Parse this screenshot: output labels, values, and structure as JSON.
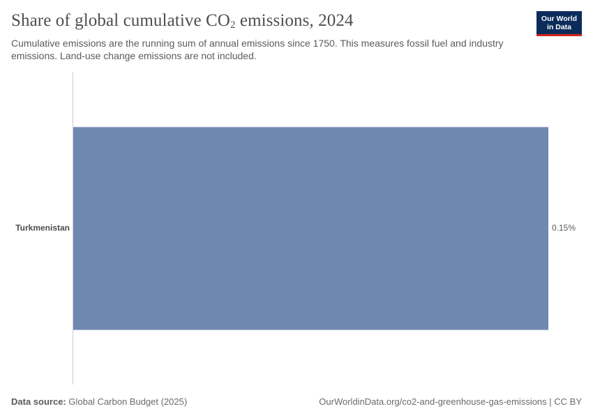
{
  "header": {
    "title_main": "Share of global cumulative CO",
    "title_sub": "2",
    "title_end": " emissions, 2024",
    "subtitle": "Cumulative emissions are the running sum of annual emissions since 1750. This measures fossil fuel and industry emissions. Land-use change emissions are not included.",
    "logo_line1": "Our World",
    "logo_line2": "in Data"
  },
  "colors": {
    "bar": "#6f88b1",
    "logo_bg": "#0b2c5b",
    "logo_accent": "#ce261e"
  },
  "chart_data": {
    "type": "bar",
    "orientation": "horizontal",
    "categories": [
      "Turkmenistan"
    ],
    "values": [
      0.15
    ],
    "value_labels": [
      "0.15%"
    ],
    "unit": "%",
    "xlim": [
      0,
      0.15
    ],
    "grid": false
  },
  "footer": {
    "source_label": "Data source:",
    "source_value": " Global Carbon Budget (2025)",
    "url": "OurWorldinData.org/co2-and-greenhouse-gas-emissions | CC BY"
  }
}
